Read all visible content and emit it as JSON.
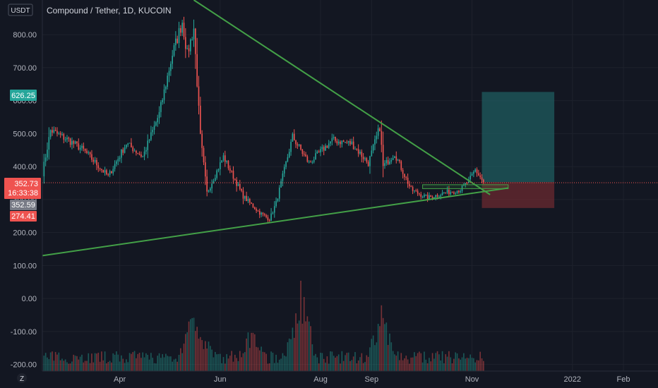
{
  "header": {
    "currency_button": "USDT",
    "symbol_title": "Compound / Tether, 1D, KUCOIN",
    "scale_button": "Z"
  },
  "colors": {
    "background": "#131722",
    "up": "#26a69a",
    "down": "#ef5350",
    "trendline": "#43a047",
    "target_zone": "#1f5c5f",
    "stop_zone": "#6b2a30"
  },
  "price_badges": [
    {
      "text": "626.25",
      "color": "#26a69a"
    },
    {
      "text": "352.73",
      "color": "#ef5350"
    },
    {
      "text": "16:33:38",
      "color": "#ef5350"
    },
    {
      "text": "352.59",
      "color": "#787b86"
    },
    {
      "text": "274.41",
      "color": "#ef5350"
    }
  ],
  "chart_data": {
    "type": "candlestick",
    "y_ticks": [
      "800.00",
      "700.00",
      "600.00",
      "500.00",
      "400.00",
      "300.00",
      "200.00",
      "100.00",
      "0.00",
      "-100.00",
      "-200.00"
    ],
    "y_tick_values": [
      800,
      700,
      600,
      500,
      400,
      300,
      200,
      100,
      0,
      -100,
      -200
    ],
    "ylim": [
      -220,
      905
    ],
    "x_ticks": [
      "Apr",
      "Jun",
      "Aug",
      "Sep",
      "Nov",
      "2022",
      "Feb"
    ],
    "x_tick_dates": [
      "2021-04-01",
      "2021-06-01",
      "2021-08-01",
      "2021-09-01",
      "2021-11-01",
      "2022-01-01",
      "2022-02-01"
    ],
    "xlim": [
      "2021-02-13",
      "2022-02-22"
    ],
    "last_price": 352.73,
    "grid": true,
    "anchors": [
      {
        "date": "2021-02-13",
        "price": 380
      },
      {
        "date": "2021-02-18",
        "price": 510
      },
      {
        "date": "2021-03-01",
        "price": 480
      },
      {
        "date": "2021-03-10",
        "price": 450
      },
      {
        "date": "2021-03-25",
        "price": 370
      },
      {
        "date": "2021-04-05",
        "price": 470
      },
      {
        "date": "2021-04-15",
        "price": 430
      },
      {
        "date": "2021-04-25",
        "price": 560
      },
      {
        "date": "2021-05-03",
        "price": 740
      },
      {
        "date": "2021-05-09",
        "price": 840
      },
      {
        "date": "2021-05-12",
        "price": 740
      },
      {
        "date": "2021-05-16",
        "price": 820
      },
      {
        "date": "2021-05-20",
        "price": 490
      },
      {
        "date": "2021-05-24",
        "price": 320
      },
      {
        "date": "2021-06-03",
        "price": 430
      },
      {
        "date": "2021-06-15",
        "price": 310
      },
      {
        "date": "2021-06-25",
        "price": 260
      },
      {
        "date": "2021-07-01",
        "price": 240
      },
      {
        "date": "2021-07-05",
        "price": 290
      },
      {
        "date": "2021-07-15",
        "price": 490
      },
      {
        "date": "2021-07-25",
        "price": 410
      },
      {
        "date": "2021-08-08",
        "price": 480
      },
      {
        "date": "2021-08-20",
        "price": 470
      },
      {
        "date": "2021-08-30",
        "price": 410
      },
      {
        "date": "2021-09-06",
        "price": 520
      },
      {
        "date": "2021-09-08",
        "price": 400
      },
      {
        "date": "2021-09-15",
        "price": 440
      },
      {
        "date": "2021-09-25",
        "price": 330
      },
      {
        "date": "2021-10-05",
        "price": 305
      },
      {
        "date": "2021-10-15",
        "price": 320
      },
      {
        "date": "2021-10-25",
        "price": 330
      },
      {
        "date": "2021-10-30",
        "price": 355
      },
      {
        "date": "2021-11-03",
        "price": 390
      },
      {
        "date": "2021-11-08",
        "price": 352.73
      }
    ],
    "volume_peaks": [
      {
        "date": "2021-05-15",
        "relative": 0.65
      },
      {
        "date": "2021-05-23",
        "relative": 0.5
      },
      {
        "date": "2021-06-20",
        "relative": 0.55
      },
      {
        "date": "2021-07-20",
        "relative": 1.0
      },
      {
        "date": "2021-09-07",
        "relative": 0.75
      }
    ],
    "drawings": {
      "descending_trendline": [
        {
          "date": "2021-05-16",
          "price": 905
        },
        {
          "date": "2021-11-12",
          "price": 315
        }
      ],
      "ascending_trendline": [
        {
          "date": "2021-02-13",
          "price": 130
        },
        {
          "date": "2021-11-23",
          "price": 335
        }
      ],
      "consolidation_box": {
        "from": "2021-10-02",
        "to": "2021-11-23",
        "top": 345,
        "bottom": 333
      },
      "target_zone": {
        "from": "2021-11-07",
        "to": "2021-12-21",
        "top": 626.25,
        "bottom": 352.73
      },
      "stop_zone": {
        "from": "2021-11-07",
        "to": "2021-12-21",
        "top": 352.73,
        "bottom": 274.41
      }
    }
  }
}
